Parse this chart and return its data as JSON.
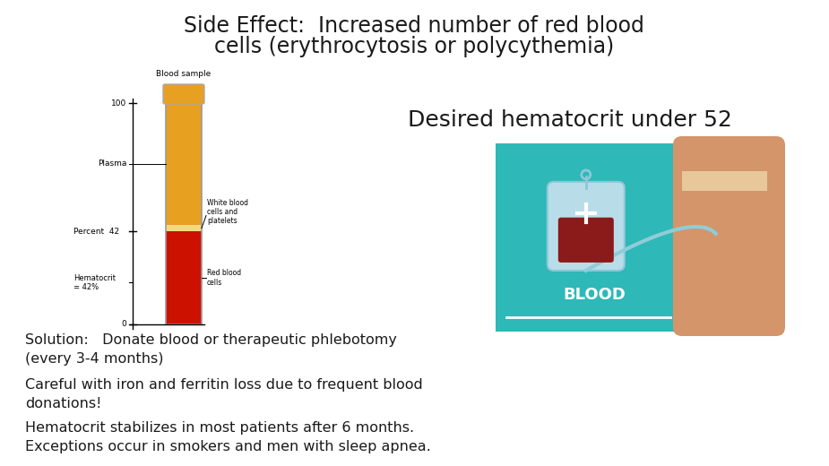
{
  "title_line1": "Side Effect:  Increased number of red blood",
  "title_line2": "cells (erythrocytosis or polycythemia)",
  "desired_text": "Desired hematocrit under 52",
  "solution_text": "Solution:   Donate blood or therapeutic phlebotomy\n(every 3-4 months)",
  "careful_text": "Careful with iron and ferritin loss due to frequent blood\ndonations!",
  "hematocrit_text": "Hematocrit stabilizes in most patients after 6 months.\nExceptions occur in smokers and men with sleep apnea.",
  "background_color": "#ffffff",
  "title_fontsize": 17,
  "body_fontsize": 11.5,
  "desired_fontsize": 18,
  "teal_color": "#2eb8b8",
  "rbc_color": "#CC1100",
  "plasma_color": "#E8A020",
  "wbc_color": "#f0dc80",
  "tube_outline": "#999999",
  "skin_color": "#D4956A",
  "bandage_color": "#E8C89A",
  "bag_body_color": "#b8dde8",
  "blood_bag_color": "#8B1A1A",
  "text_color": "#1a1a1a"
}
